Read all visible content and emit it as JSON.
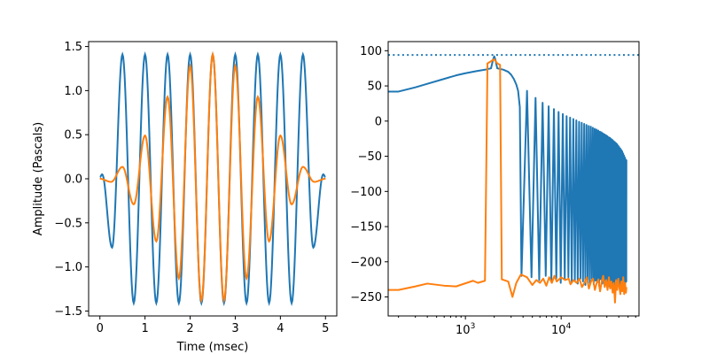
{
  "chart_data": [
    {
      "type": "line",
      "xlabel": "Time (msec)",
      "ylabel": "Amplitude (Pascals)",
      "xlim": [
        -0.25,
        5.25
      ],
      "ylim": [
        -1.556,
        1.556
      ],
      "xticks": [
        "0",
        "1",
        "2",
        "3",
        "4",
        "5"
      ],
      "yticks": [
        "−1.5",
        "−1.0",
        "−0.5",
        "0.0",
        "0.5",
        "1.0",
        "1.5"
      ],
      "ytick_values": [
        -1.5,
        -1.0,
        -0.5,
        0.0,
        0.5,
        1.0,
        1.5
      ],
      "xtick_values": [
        0,
        1,
        2,
        3,
        4,
        5
      ],
      "grid": false,
      "series": [
        {
          "color": "#1f77b4",
          "points": [
            [
              0,
              0.02
            ],
            [
              0.05,
              0.05
            ],
            [
              0.27,
              -0.78
            ],
            [
              0.5,
              1.41
            ],
            [
              0.75,
              -1.41
            ],
            [
              1.0,
              1.41
            ],
            [
              1.25,
              -1.41
            ],
            [
              1.5,
              1.41
            ],
            [
              1.75,
              -1.41
            ],
            [
              2.0,
              1.41
            ],
            [
              2.25,
              -1.41
            ],
            [
              2.5,
              1.41
            ],
            [
              2.75,
              -1.41
            ],
            [
              3.0,
              1.41
            ],
            [
              3.25,
              -1.41
            ],
            [
              3.5,
              1.41
            ],
            [
              3.75,
              -1.41
            ],
            [
              4.0,
              1.41
            ],
            [
              4.25,
              -1.41
            ],
            [
              4.5,
              1.41
            ],
            [
              4.73,
              -0.78
            ],
            [
              4.95,
              0.05
            ],
            [
              5.0,
              0.02
            ]
          ]
        },
        {
          "color": "#ff7f0e",
          "points": [
            [
              0,
              0
            ],
            [
              0.25,
              -0.035
            ],
            [
              0.5,
              0.135
            ],
            [
              0.75,
              -0.29
            ],
            [
              1.0,
              0.49
            ],
            [
              1.25,
              -0.71
            ],
            [
              1.5,
              0.93
            ],
            [
              1.75,
              -1.13
            ],
            [
              2.0,
              1.28
            ],
            [
              2.25,
              -1.38
            ],
            [
              2.5,
              1.41
            ],
            [
              2.75,
              -1.38
            ],
            [
              3.0,
              1.28
            ],
            [
              3.25,
              -1.13
            ],
            [
              3.5,
              0.93
            ],
            [
              3.75,
              -0.71
            ],
            [
              4.0,
              0.49
            ],
            [
              4.25,
              -0.29
            ],
            [
              4.5,
              0.135
            ],
            [
              4.75,
              -0.035
            ],
            [
              5.0,
              0
            ]
          ]
        }
      ]
    },
    {
      "type": "line",
      "xscale": "log",
      "xlim": [
        156,
        65000
      ],
      "ylim": [
        -277,
        113
      ],
      "xticks": [
        {
          "base": "10",
          "exp": "3",
          "value": 1000
        },
        {
          "base": "10",
          "exp": "4",
          "value": 10000
        }
      ],
      "yticks": [
        "−250",
        "−200",
        "−150",
        "−100",
        "−50",
        "0",
        "50",
        "100"
      ],
      "ytick_values": [
        -250,
        -200,
        -150,
        -100,
        -50,
        0,
        50,
        100
      ],
      "grid": false,
      "reference_line": {
        "y": 94,
        "style": "dotted",
        "color": "#1f77b4"
      },
      "series": [
        {
          "color": "#1f77b4",
          "main": [
            [
              156,
              42
            ],
            [
              200,
              42
            ],
            [
              300,
              48
            ],
            [
              400,
              53
            ],
            [
              600,
              60
            ],
            [
              800,
              65
            ],
            [
              1000,
              68
            ],
            [
              1300,
              71
            ],
            [
              1600,
              73
            ],
            [
              1850,
              75
            ],
            [
              1950,
              88
            ],
            [
              2000,
              92
            ],
            [
              2050,
              88
            ],
            [
              2150,
              75
            ],
            [
              2500,
              73
            ],
            [
              2800,
              70
            ],
            [
              3000,
              66
            ],
            [
              3200,
              60
            ],
            [
              3400,
              52
            ],
            [
              3550,
              43
            ],
            [
              3700,
              20
            ],
            [
              3850,
              -220
            ],
            [
              48000,
              -55
            ]
          ],
          "sidelobe_peaks": [
            [
              4400,
              43
            ],
            [
              5400,
              33
            ],
            [
              6400,
              26
            ],
            [
              7400,
              21
            ],
            [
              8400,
              17
            ],
            [
              9400,
              13
            ],
            [
              10400,
              10
            ],
            [
              11400,
              7
            ],
            [
              12400,
              5
            ],
            [
              13400,
              3
            ],
            [
              14400,
              1
            ],
            [
              15400,
              -1
            ],
            [
              16400,
              -2.5
            ],
            [
              17400,
              -4
            ],
            [
              18400,
              -5.5
            ],
            [
              19400,
              -7
            ],
            [
              20400,
              -8
            ],
            [
              21400,
              -9.5
            ],
            [
              22400,
              -11
            ],
            [
              23400,
              -12
            ],
            [
              24400,
              -13.5
            ],
            [
              25400,
              -15
            ],
            [
              26400,
              -16
            ],
            [
              27400,
              -17.5
            ],
            [
              28400,
              -19
            ],
            [
              29400,
              -20
            ],
            [
              30400,
              -21.5
            ],
            [
              31400,
              -23
            ],
            [
              32400,
              -24
            ],
            [
              33400,
              -25.5
            ],
            [
              34400,
              -27
            ],
            [
              35400,
              -28.5
            ],
            [
              36400,
              -30
            ],
            [
              37400,
              -31.5
            ],
            [
              38400,
              -33
            ],
            [
              39400,
              -35
            ],
            [
              40400,
              -37
            ],
            [
              41400,
              -39
            ],
            [
              42400,
              -41
            ],
            [
              43400,
              -43
            ],
            [
              44400,
              -46
            ],
            [
              45400,
              -49
            ],
            [
              46400,
              -52
            ],
            [
              47400,
              -55
            ]
          ],
          "sidelobe_nulls": [
            [
              4900,
              -222
            ],
            [
              5900,
              -226
            ],
            [
              6900,
              -220
            ],
            [
              7900,
              -228
            ],
            [
              8900,
              -224
            ],
            [
              9900,
              -230
            ],
            [
              10900,
              -225
            ],
            [
              11900,
              -222
            ],
            [
              12900,
              -229
            ],
            [
              13900,
              -226
            ],
            [
              14900,
              -231
            ],
            [
              15900,
              -224
            ],
            [
              16900,
              -228
            ],
            [
              17900,
              -233
            ],
            [
              18900,
              -226
            ],
            [
              19900,
              -230
            ],
            [
              20900,
              -224
            ],
            [
              21900,
              -232
            ],
            [
              22900,
              -227
            ],
            [
              23900,
              -229
            ],
            [
              24900,
              -234
            ],
            [
              25900,
              -225
            ],
            [
              26900,
              -231
            ],
            [
              27900,
              -228
            ],
            [
              28900,
              -233
            ],
            [
              29900,
              -226
            ],
            [
              30900,
              -230
            ],
            [
              31900,
              -235
            ],
            [
              32900,
              -227
            ],
            [
              33900,
              -232
            ],
            [
              34900,
              -229
            ],
            [
              35900,
              -234
            ],
            [
              36900,
              -226
            ],
            [
              37900,
              -231
            ],
            [
              38900,
              -228
            ],
            [
              39900,
              -233
            ],
            [
              40900,
              -230
            ],
            [
              41900,
              -235
            ],
            [
              42900,
              -227
            ],
            [
              43900,
              -232
            ],
            [
              44900,
              -229
            ],
            [
              45900,
              -234
            ],
            [
              46900,
              -230
            ],
            [
              47900,
              -228
            ]
          ]
        },
        {
          "color": "#ff7f0e",
          "points": [
            [
              156,
              -240
            ],
            [
              200,
              -240
            ],
            [
              300,
              -235
            ],
            [
              400,
              -231
            ],
            [
              600,
              -234
            ],
            [
              800,
              -235
            ],
            [
              1200,
              -227
            ],
            [
              1350,
              -230
            ],
            [
              1600,
              -227
            ],
            [
              1700,
              82
            ],
            [
              1850,
              85
            ],
            [
              2000,
              88
            ],
            [
              2150,
              82
            ],
            [
              2300,
              80
            ],
            [
              2400,
              -225
            ],
            [
              2800,
              -228
            ],
            [
              3100,
              -250
            ],
            [
              3400,
              -230
            ],
            [
              3800,
              -218
            ],
            [
              4400,
              -222
            ],
            [
              5000,
              -233
            ],
            [
              5500,
              -226
            ],
            [
              6000,
              -230
            ],
            [
              6500,
              -224
            ],
            [
              7000,
              -234
            ],
            [
              7500,
              -222
            ],
            [
              8000,
              -230
            ],
            [
              8500,
              -220
            ],
            [
              9000,
              -228
            ],
            [
              9500,
              -225
            ],
            [
              10000,
              -222
            ],
            [
              11000,
              -226
            ],
            [
              12000,
              -224
            ],
            [
              12500,
              -232
            ],
            [
              13500,
              -226
            ],
            [
              14500,
              -230
            ],
            [
              15500,
              -224
            ],
            [
              16500,
              -236
            ],
            [
              17500,
              -230
            ],
            [
              18500,
              -222
            ],
            [
              19500,
              -238
            ],
            [
              20500,
              -228
            ],
            [
              21500,
              -224
            ],
            [
              22500,
              -240
            ],
            [
              23500,
              -230
            ],
            [
              24500,
              -225
            ],
            [
              25500,
              -242
            ],
            [
              26500,
              -228
            ],
            [
              27500,
              -220
            ],
            [
              28500,
              -236
            ],
            [
              29500,
              -226
            ],
            [
              30500,
              -240
            ],
            [
              31500,
              -222
            ],
            [
              32500,
              -238
            ],
            [
              33500,
              -228
            ],
            [
              34500,
              -244
            ],
            [
              35500,
              -230
            ],
            [
              36500,
              -258
            ],
            [
              37500,
              -226
            ],
            [
              38500,
              -240
            ],
            [
              39500,
              -224
            ],
            [
              40500,
              -236
            ],
            [
              41500,
              -246
            ],
            [
              42500,
              -228
            ],
            [
              43500,
              -242
            ],
            [
              44500,
              -222
            ],
            [
              45500,
              -246
            ],
            [
              46500,
              -230
            ],
            [
              47500,
              -244
            ],
            [
              48000,
              -236
            ]
          ]
        }
      ]
    }
  ]
}
